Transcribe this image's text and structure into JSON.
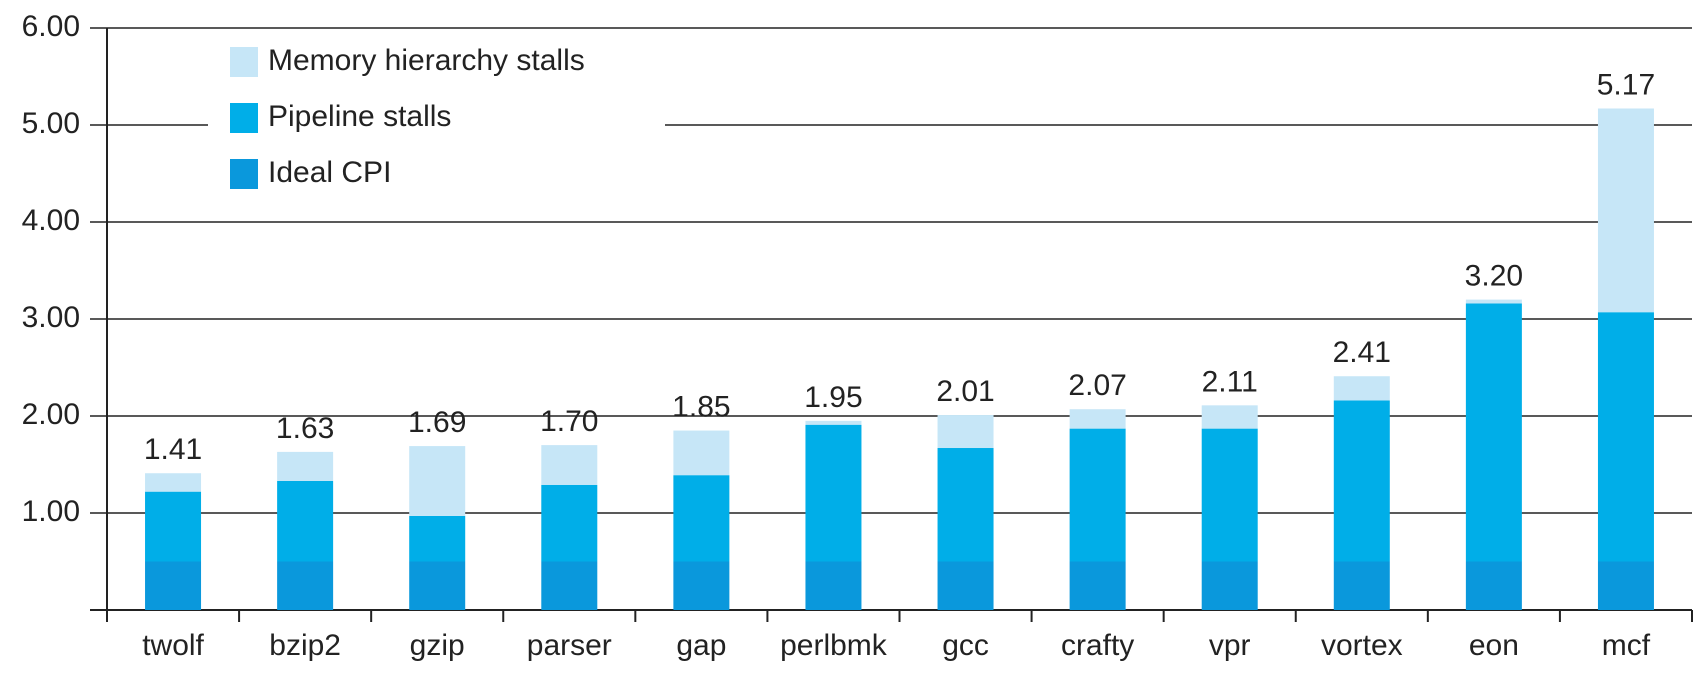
{
  "chart_data": {
    "type": "stacked_bar",
    "categories": [
      "twolf",
      "bzip2",
      "gzip",
      "parser",
      "gap",
      "perlbmk",
      "gcc",
      "crafty",
      "vpr",
      "vortex",
      "eon",
      "mcf"
    ],
    "series": [
      {
        "name": "Ideal CPI",
        "color": "#0a98dc",
        "values": [
          0.5,
          0.5,
          0.5,
          0.5,
          0.5,
          0.5,
          0.5,
          0.5,
          0.5,
          0.5,
          0.5,
          0.5
        ]
      },
      {
        "name": "Pipeline stalls",
        "color": "#00aee8",
        "values": [
          0.72,
          0.83,
          0.47,
          0.79,
          0.89,
          1.41,
          1.17,
          1.37,
          1.37,
          1.66,
          2.66,
          2.57
        ]
      },
      {
        "name": "Memory hierarchy stalls",
        "color": "#c6e6f7",
        "values": [
          0.19,
          0.3,
          0.72,
          0.41,
          0.46,
          0.04,
          0.34,
          0.2,
          0.24,
          0.25,
          0.04,
          2.1
        ]
      }
    ],
    "totals": [
      1.41,
      1.63,
      1.69,
      1.7,
      1.85,
      1.95,
      2.01,
      2.07,
      2.11,
      2.41,
      3.2,
      5.17
    ],
    "value_labels": [
      "1.41",
      "1.63",
      "1.69",
      "1.70",
      "1.85",
      "1.95",
      "2.01",
      "2.07",
      "2.11",
      "2.41",
      "3.20",
      "5.17"
    ],
    "ylim": [
      0,
      6
    ],
    "yticks": [
      {
        "value": 1,
        "label": "1.00"
      },
      {
        "value": 2,
        "label": "2.00"
      },
      {
        "value": 3,
        "label": "3.00"
      },
      {
        "value": 4,
        "label": "4.00"
      },
      {
        "value": 5,
        "label": "5.00"
      },
      {
        "value": 6,
        "label": "6.00"
      }
    ],
    "grid": true,
    "legend": "upper left"
  }
}
